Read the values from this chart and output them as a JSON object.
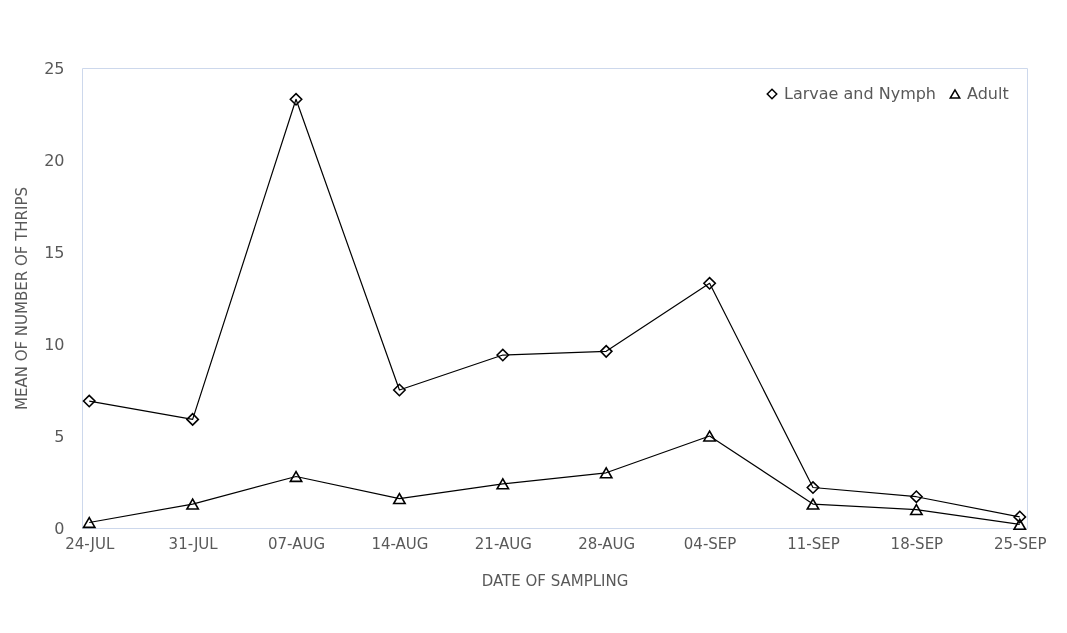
{
  "chart_data": {
    "type": "line",
    "xlabel": "DATE OF SAMPLING",
    "ylabel": "MEAN OF NUMBER OF THRIPS",
    "categories": [
      "24-JUL",
      "31-JUL",
      "07-AUG",
      "14-AUG",
      "21-AUG",
      "28-AUG",
      "04-SEP",
      "11-SEP",
      "18-SEP",
      "25-SEP"
    ],
    "series": [
      {
        "name": "Larvae and Nymph",
        "color": "#000000",
        "marker": "diamond",
        "values": [
          6.9,
          5.9,
          23.3,
          7.5,
          9.4,
          9.6,
          13.3,
          2.2,
          1.7,
          0.6
        ]
      },
      {
        "name": "Adult",
        "color": "#000000",
        "marker": "triangle",
        "values": [
          0.3,
          1.3,
          2.8,
          1.6,
          2.4,
          3.0,
          5.0,
          1.3,
          1.0,
          0.2
        ]
      }
    ],
    "ylim": [
      0,
      25
    ],
    "yticks": [
      0,
      5,
      10,
      15,
      20,
      25
    ],
    "grid": false,
    "legend": "top right"
  }
}
